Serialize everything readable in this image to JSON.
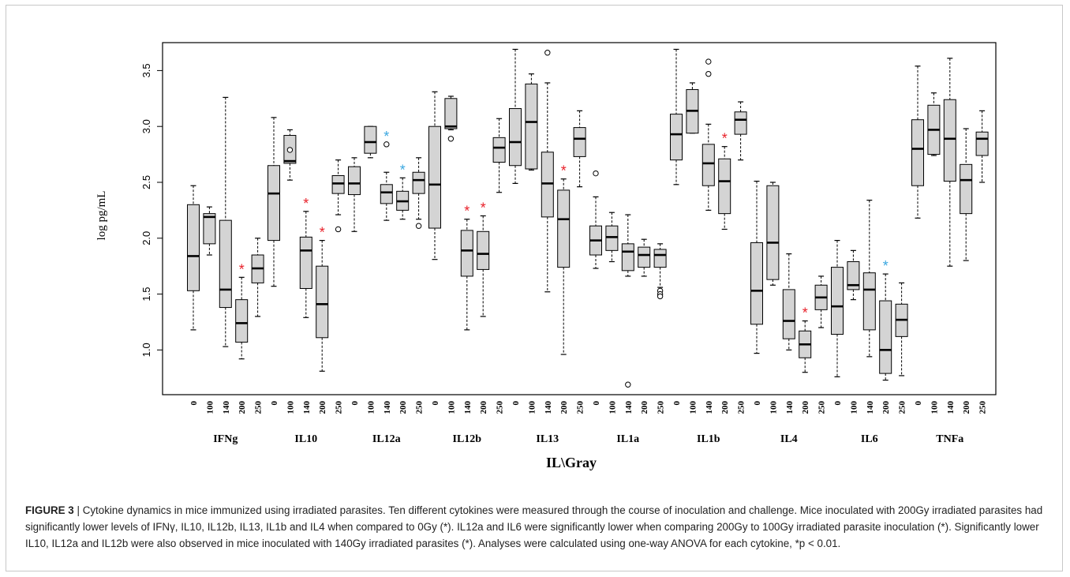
{
  "chart_data": {
    "type": "boxplot",
    "ylabel": "log pg/mL",
    "xlabel": "IL\\Gray",
    "ylim": [
      0.6,
      3.75
    ],
    "yticks": [
      1.0,
      1.5,
      2.0,
      2.5,
      3.0,
      3.5
    ],
    "doses": [
      "0",
      "100",
      "140",
      "200",
      "250"
    ],
    "box_color": "#d4d4d4",
    "sig_colors": {
      "vs_0Gy": "#e8212a",
      "vs_100Gy": "#3aa7e0"
    },
    "groups": [
      {
        "name": "IFNg",
        "boxes": [
          {
            "dose": "0",
            "min": 1.18,
            "q1": 1.53,
            "median": 1.84,
            "q3": 2.3,
            "max": 2.47,
            "outliers": []
          },
          {
            "dose": "100",
            "min": 1.85,
            "q1": 1.95,
            "median": 2.19,
            "q3": 2.22,
            "max": 2.28,
            "outliers": []
          },
          {
            "dose": "140",
            "min": 1.03,
            "q1": 1.38,
            "median": 1.54,
            "q3": 2.16,
            "max": 3.26,
            "outliers": []
          },
          {
            "dose": "200",
            "min": 0.92,
            "q1": 1.07,
            "median": 1.24,
            "q3": 1.45,
            "max": 1.65,
            "outliers": [],
            "sig": "vs_0Gy"
          },
          {
            "dose": "250",
            "min": 1.3,
            "q1": 1.6,
            "median": 1.73,
            "q3": 1.85,
            "max": 2.0,
            "outliers": []
          }
        ]
      },
      {
        "name": "IL10",
        "boxes": [
          {
            "dose": "0",
            "min": 1.57,
            "q1": 1.98,
            "median": 2.4,
            "q3": 2.65,
            "max": 3.08,
            "outliers": []
          },
          {
            "dose": "100",
            "min": 2.52,
            "q1": 2.67,
            "median": 2.69,
            "q3": 2.92,
            "max": 2.97,
            "outliers": [
              2.79
            ]
          },
          {
            "dose": "140",
            "min": 1.29,
            "q1": 1.55,
            "median": 1.89,
            "q3": 2.01,
            "max": 2.24,
            "outliers": [],
            "sig": "vs_0Gy"
          },
          {
            "dose": "200",
            "min": 0.81,
            "q1": 1.11,
            "median": 1.41,
            "q3": 1.75,
            "max": 1.98,
            "outliers": [],
            "sig": "vs_0Gy"
          },
          {
            "dose": "250",
            "min": 2.21,
            "q1": 2.4,
            "median": 2.49,
            "q3": 2.56,
            "max": 2.7,
            "outliers": [
              2.08
            ]
          }
        ]
      },
      {
        "name": "IL12a",
        "boxes": [
          {
            "dose": "0",
            "min": 2.06,
            "q1": 2.39,
            "median": 2.49,
            "q3": 2.64,
            "max": 2.72,
            "outliers": []
          },
          {
            "dose": "100",
            "min": 2.72,
            "q1": 2.76,
            "median": 2.86,
            "q3": 3.0,
            "max": 3.0,
            "outliers": []
          },
          {
            "dose": "140",
            "min": 2.16,
            "q1": 2.31,
            "median": 2.41,
            "q3": 2.48,
            "max": 2.59,
            "outliers": [
              2.84
            ],
            "sig": "vs_100Gy"
          },
          {
            "dose": "200",
            "min": 2.17,
            "q1": 2.25,
            "median": 2.33,
            "q3": 2.42,
            "max": 2.54,
            "outliers": [],
            "sig": "vs_100Gy"
          },
          {
            "dose": "250",
            "min": 2.17,
            "q1": 2.4,
            "median": 2.52,
            "q3": 2.59,
            "max": 2.72,
            "outliers": [
              2.11
            ]
          }
        ]
      },
      {
        "name": "IL12b",
        "boxes": [
          {
            "dose": "0",
            "min": 1.81,
            "q1": 2.09,
            "median": 2.48,
            "q3": 3.0,
            "max": 3.31,
            "outliers": []
          },
          {
            "dose": "100",
            "min": 2.97,
            "q1": 2.98,
            "median": 3.0,
            "q3": 3.25,
            "max": 3.27,
            "outliers": [
              2.89
            ]
          },
          {
            "dose": "140",
            "min": 1.18,
            "q1": 1.66,
            "median": 1.89,
            "q3": 2.07,
            "max": 2.17,
            "outliers": [],
            "sig": "vs_0Gy"
          },
          {
            "dose": "200",
            "min": 1.3,
            "q1": 1.72,
            "median": 1.86,
            "q3": 2.06,
            "max": 2.2,
            "outliers": [],
            "sig": "vs_0Gy"
          },
          {
            "dose": "250",
            "min": 2.41,
            "q1": 2.68,
            "median": 2.81,
            "q3": 2.9,
            "max": 3.07,
            "outliers": []
          }
        ]
      },
      {
        "name": "IL13",
        "boxes": [
          {
            "dose": "0",
            "min": 2.49,
            "q1": 2.65,
            "median": 2.86,
            "q3": 3.16,
            "max": 3.69,
            "outliers": []
          },
          {
            "dose": "100",
            "min": 2.61,
            "q1": 2.62,
            "median": 3.04,
            "q3": 3.38,
            "max": 3.47,
            "outliers": []
          },
          {
            "dose": "140",
            "min": 1.52,
            "q1": 2.19,
            "median": 2.49,
            "q3": 2.77,
            "max": 3.39,
            "outliers": [
              3.66
            ]
          },
          {
            "dose": "200",
            "min": 0.96,
            "q1": 1.74,
            "median": 2.17,
            "q3": 2.43,
            "max": 2.53,
            "outliers": [],
            "sig": "vs_0Gy"
          },
          {
            "dose": "250",
            "min": 2.46,
            "q1": 2.73,
            "median": 2.89,
            "q3": 2.99,
            "max": 3.14,
            "outliers": []
          }
        ]
      },
      {
        "name": "IL1a",
        "boxes": [
          {
            "dose": "0",
            "min": 1.73,
            "q1": 1.85,
            "median": 1.98,
            "q3": 2.11,
            "max": 2.37,
            "outliers": [
              2.58
            ]
          },
          {
            "dose": "100",
            "min": 1.79,
            "q1": 1.89,
            "median": 2.01,
            "q3": 2.11,
            "max": 2.23,
            "outliers": []
          },
          {
            "dose": "140",
            "min": 1.66,
            "q1": 1.71,
            "median": 1.88,
            "q3": 1.95,
            "max": 2.21,
            "outliers": [
              0.69
            ]
          },
          {
            "dose": "200",
            "min": 1.66,
            "q1": 1.74,
            "median": 1.85,
            "q3": 1.92,
            "max": 1.99,
            "outliers": []
          },
          {
            "dose": "250",
            "min": 1.56,
            "q1": 1.74,
            "median": 1.85,
            "q3": 1.9,
            "max": 1.95,
            "outliers": [
              1.53,
              1.5,
              1.48
            ]
          }
        ]
      },
      {
        "name": "IL1b",
        "boxes": [
          {
            "dose": "0",
            "min": 2.48,
            "q1": 2.7,
            "median": 2.93,
            "q3": 3.11,
            "max": 3.69,
            "outliers": []
          },
          {
            "dose": "100",
            "min": 2.94,
            "q1": 2.94,
            "median": 3.14,
            "q3": 3.33,
            "max": 3.39,
            "outliers": []
          },
          {
            "dose": "140",
            "min": 2.25,
            "q1": 2.47,
            "median": 2.67,
            "q3": 2.84,
            "max": 3.02,
            "outliers": [
              3.58,
              3.47
            ]
          },
          {
            "dose": "200",
            "min": 2.08,
            "q1": 2.22,
            "median": 2.51,
            "q3": 2.71,
            "max": 2.82,
            "outliers": [],
            "sig": "vs_0Gy"
          },
          {
            "dose": "250",
            "min": 2.7,
            "q1": 2.93,
            "median": 3.06,
            "q3": 3.13,
            "max": 3.22,
            "outliers": []
          }
        ]
      },
      {
        "name": "IL4",
        "boxes": [
          {
            "dose": "0",
            "min": 0.97,
            "q1": 1.23,
            "median": 1.53,
            "q3": 1.96,
            "max": 2.51,
            "outliers": []
          },
          {
            "dose": "100",
            "min": 1.58,
            "q1": 1.63,
            "median": 1.96,
            "q3": 2.47,
            "max": 2.5,
            "outliers": []
          },
          {
            "dose": "140",
            "min": 1.0,
            "q1": 1.1,
            "median": 1.26,
            "q3": 1.54,
            "max": 1.86,
            "outliers": []
          },
          {
            "dose": "200",
            "min": 0.8,
            "q1": 0.93,
            "median": 1.05,
            "q3": 1.17,
            "max": 1.26,
            "outliers": [],
            "sig": "vs_0Gy"
          },
          {
            "dose": "250",
            "min": 1.2,
            "q1": 1.36,
            "median": 1.47,
            "q3": 1.58,
            "max": 1.66,
            "outliers": []
          }
        ]
      },
      {
        "name": "IL6",
        "boxes": [
          {
            "dose": "0",
            "min": 0.76,
            "q1": 1.14,
            "median": 1.39,
            "q3": 1.74,
            "max": 1.98,
            "outliers": []
          },
          {
            "dose": "100",
            "min": 1.45,
            "q1": 1.54,
            "median": 1.58,
            "q3": 1.79,
            "max": 1.89,
            "outliers": []
          },
          {
            "dose": "140",
            "min": 0.94,
            "q1": 1.18,
            "median": 1.54,
            "q3": 1.69,
            "max": 2.34,
            "outliers": []
          },
          {
            "dose": "200",
            "min": 0.73,
            "q1": 0.79,
            "median": 1.0,
            "q3": 1.44,
            "max": 1.68,
            "outliers": [],
            "sig": "vs_100Gy"
          },
          {
            "dose": "250",
            "min": 0.77,
            "q1": 1.12,
            "median": 1.27,
            "q3": 1.41,
            "max": 1.6,
            "outliers": []
          }
        ]
      },
      {
        "name": "TNFa",
        "boxes": [
          {
            "dose": "0",
            "min": 2.18,
            "q1": 2.47,
            "median": 2.8,
            "q3": 3.06,
            "max": 3.54,
            "outliers": []
          },
          {
            "dose": "100",
            "min": 2.74,
            "q1": 2.75,
            "median": 2.97,
            "q3": 3.19,
            "max": 3.3,
            "outliers": []
          },
          {
            "dose": "140",
            "min": 1.75,
            "q1": 2.51,
            "median": 2.89,
            "q3": 3.24,
            "max": 3.61,
            "outliers": []
          },
          {
            "dose": "200",
            "min": 1.8,
            "q1": 2.22,
            "median": 2.52,
            "q3": 2.66,
            "max": 2.98,
            "outliers": []
          },
          {
            "dose": "250",
            "min": 2.5,
            "q1": 2.74,
            "median": 2.89,
            "q3": 2.95,
            "max": 3.14,
            "outliers": []
          }
        ]
      }
    ]
  },
  "caption": {
    "label": "FIGURE 3",
    "separator": " | ",
    "text": "Cytokine dynamics in mice immunized using irradiated parasites. Ten different cytokines were measured through the course of inoculation and challenge. Mice inoculated with 200Gy irradiated parasites had significantly lower levels of IFNγ, IL10, IL12b, IL13, IL1b and IL4 when compared to 0Gy (*). IL12a and IL6 were significantly lower when comparing 200Gy to 100Gy irradiated parasite inoculation (*). Significantly lower IL10, IL12a and IL12b were also observed in mice inoculated with 140Gy irradiated parasites (*). Analyses were calculated using one-way ANOVA for each cytokine, *p < 0.01."
  }
}
